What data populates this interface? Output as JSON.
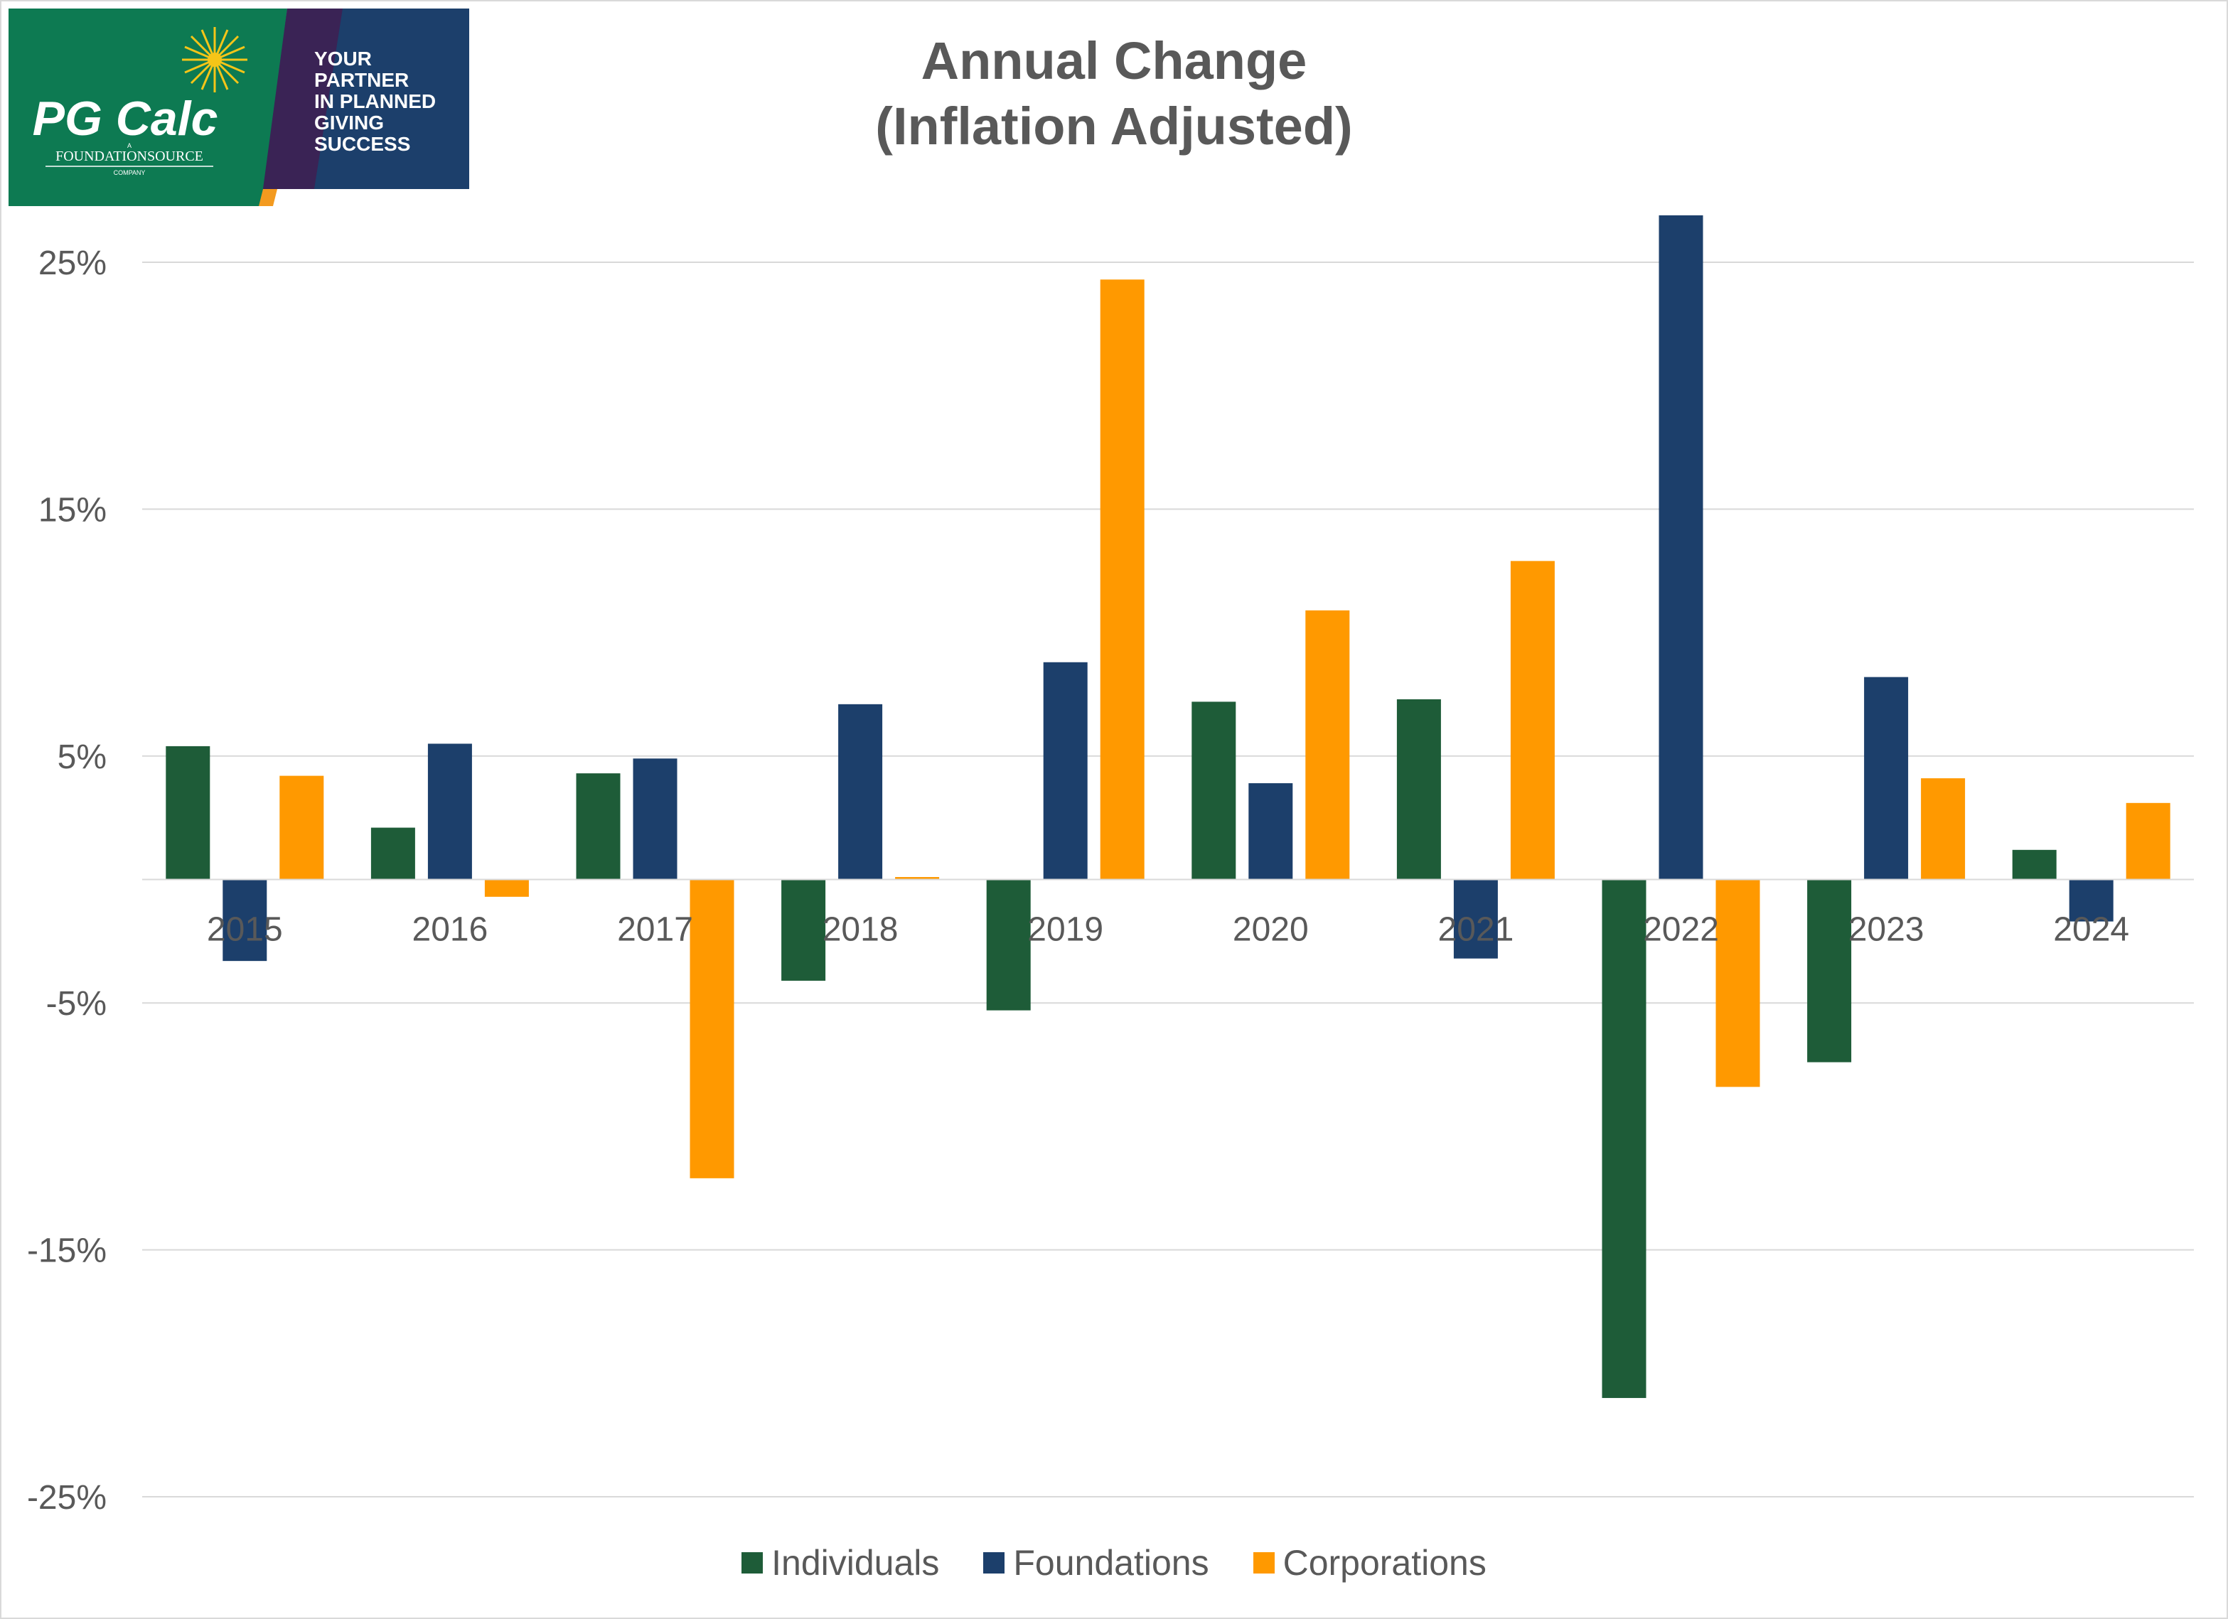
{
  "logo": {
    "brand": "PG Calc",
    "parent_prefix": "A",
    "parent": "FOUNDATIONSOURCE",
    "parent_suffix": "COMPANY",
    "tagline": [
      "YOUR",
      "PARTNER",
      "IN PLANNED",
      "GIVING",
      "SUCCESS"
    ],
    "colors": {
      "green": "#0d7a52",
      "navy": "#1c3f6b",
      "purple": "#3a2355",
      "star": "#f5c518"
    }
  },
  "chart_data": {
    "type": "bar",
    "title": [
      "Annual Change",
      "(Inflation Adjusted)"
    ],
    "categories": [
      "2015",
      "2016",
      "2017",
      "2018",
      "2019",
      "2020",
      "2021",
      "2022",
      "2023",
      "2024"
    ],
    "series": [
      {
        "name": "Individuals",
        "color": "#1e5c38",
        "values": [
          5.4,
          2.1,
          4.3,
          -4.1,
          -5.3,
          7.2,
          7.3,
          -21.0,
          -7.4,
          1.2
        ]
      },
      {
        "name": "Foundations",
        "color": "#1c3f6b",
        "values": [
          -3.3,
          5.5,
          4.9,
          7.1,
          8.8,
          3.9,
          -3.2,
          26.9,
          8.2,
          -1.7
        ]
      },
      {
        "name": "Corporations",
        "color": "#ff9900",
        "values": [
          4.2,
          -0.7,
          -12.1,
          0.1,
          24.3,
          10.9,
          12.9,
          -8.4,
          4.1,
          3.1
        ]
      }
    ],
    "yticks": [
      25,
      15,
      5,
      -5,
      -15,
      -25
    ],
    "ytick_labels": [
      "25%",
      "15%",
      "5%",
      "-5%",
      "-15%",
      "-25%"
    ],
    "ylim": [
      -25,
      25
    ],
    "grid": true,
    "legend": "bottom"
  }
}
